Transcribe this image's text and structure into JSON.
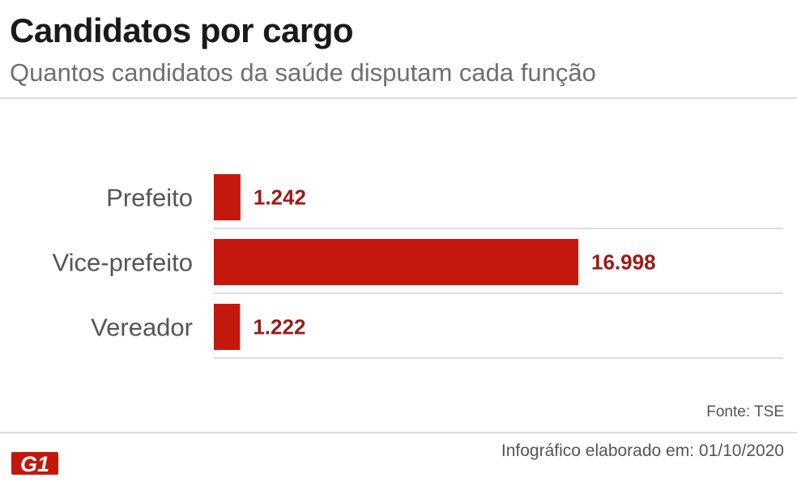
{
  "title": "Candidatos por cargo",
  "subtitle": "Quantos candidatos da saúde disputam cada função",
  "source": "Fonte:  TSE",
  "credit": "Infográfico elaborado em: 01/10/2020",
  "logo_text": "G1",
  "colors": {
    "bar": "#c4180f",
    "value_label": "#9b1b17",
    "grid": "#dddddd",
    "category_label": "#555555"
  },
  "chart_data": {
    "type": "bar",
    "orientation": "horizontal",
    "title": "Candidatos por cargo",
    "subtitle": "Quantos candidatos da saúde disputam cada função",
    "categories": [
      "Prefeito",
      "Vice-prefeito",
      "Vereador"
    ],
    "values": [
      1242,
      16998,
      1222
    ],
    "value_labels": [
      "1.242",
      "16.998",
      "1.222"
    ],
    "xlabel": "",
    "ylabel": "",
    "xlim": [
      0,
      26500
    ]
  }
}
